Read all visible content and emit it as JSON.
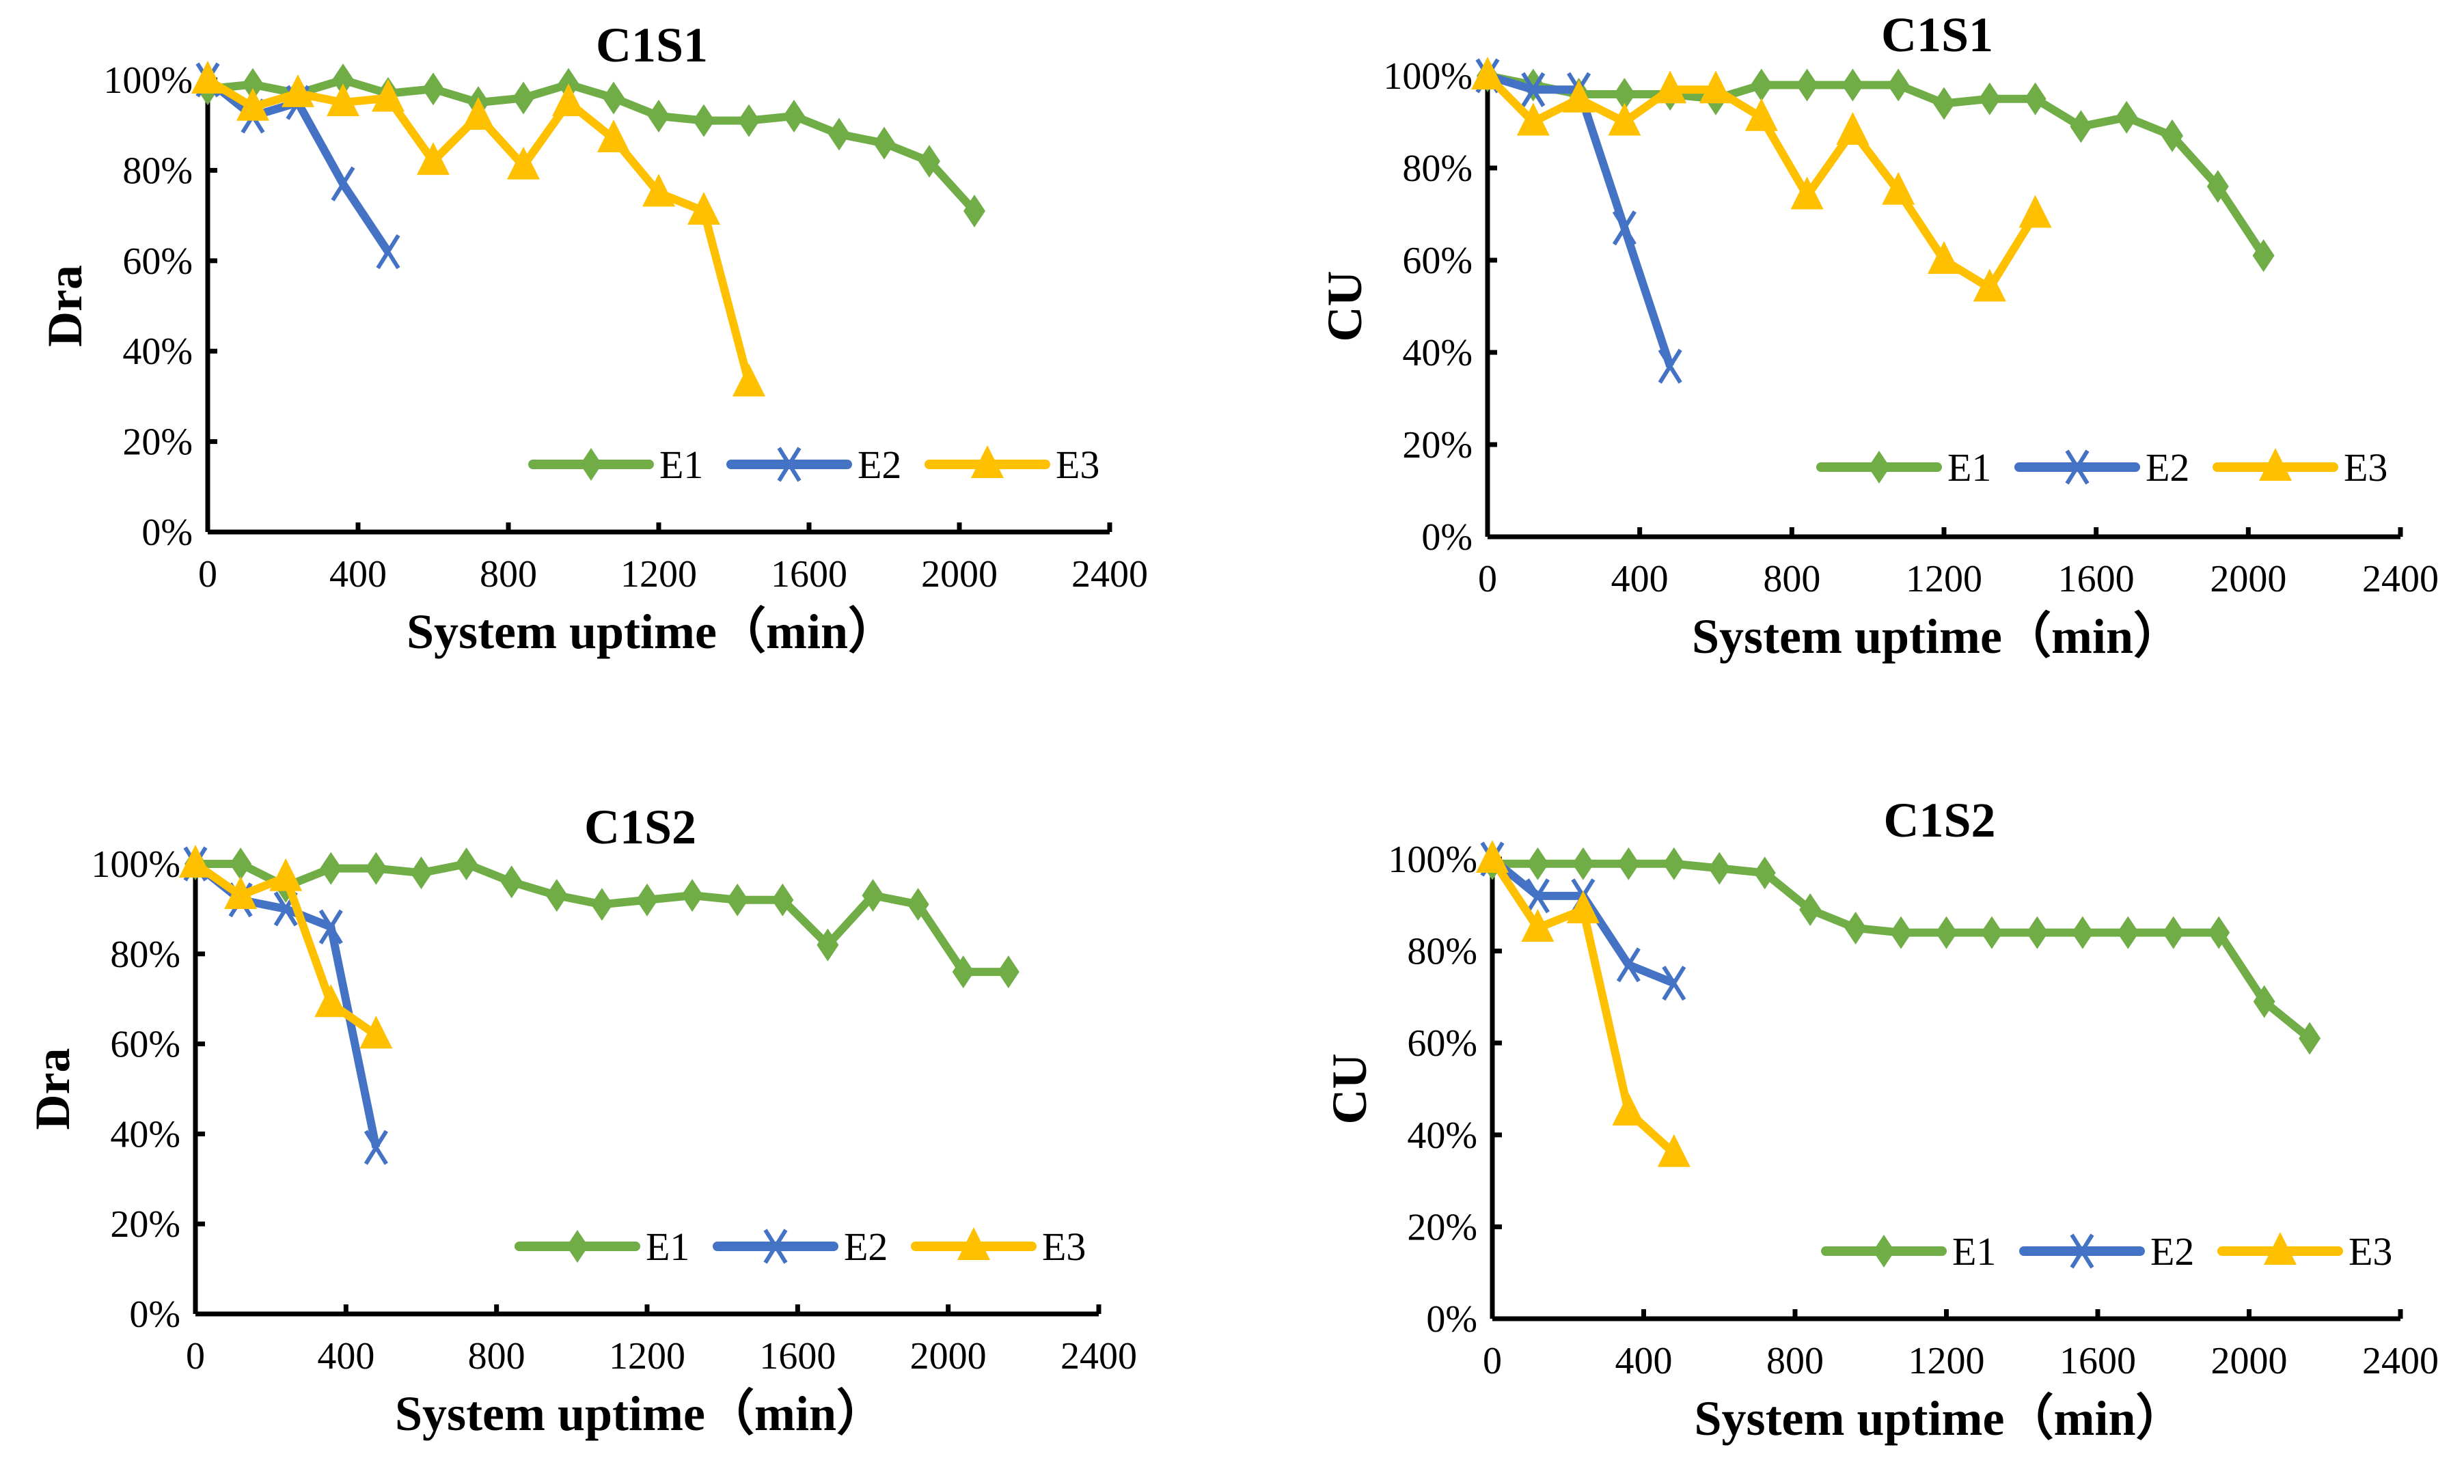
{
  "colors": {
    "E1": "#70AD47",
    "E2": "#4472C4",
    "E3": "#FFC000"
  },
  "chart_data": [
    {
      "type": "line",
      "title": "C1S1",
      "xlabel": "System uptime（min）",
      "ylabel": "Dra",
      "xlim": [
        0,
        2400
      ],
      "ylim": [
        0,
        100
      ],
      "xticks": [
        "0",
        "400",
        "800",
        "1200",
        "1600",
        "2000",
        "2400"
      ],
      "yticks": [
        "0%",
        "20%",
        "40%",
        "60%",
        "80%",
        "100%"
      ],
      "legend": "bottom-right",
      "series": [
        {
          "name": "E1",
          "marker": "diamond",
          "x": [
            0,
            120,
            240,
            360,
            480,
            600,
            720,
            840,
            960,
            1080,
            1200,
            1320,
            1440,
            1560,
            1680,
            1800,
            1920,
            2040
          ],
          "y": [
            98,
            99,
            97,
            100,
            97,
            98,
            95,
            96,
            99,
            96,
            92,
            91,
            91,
            92,
            88,
            86,
            82,
            71
          ]
        },
        {
          "name": "E2",
          "marker": "x",
          "x": [
            0,
            120,
            240,
            360,
            480
          ],
          "y": [
            100,
            92,
            95,
            77,
            62
          ]
        },
        {
          "name": "E3",
          "marker": "triangle",
          "x": [
            0,
            120,
            240,
            360,
            480,
            600,
            720,
            840,
            960,
            1080,
            1200,
            1320,
            1440
          ],
          "y": [
            100,
            94,
            97,
            95,
            96,
            82,
            92,
            81,
            95,
            87,
            75,
            71,
            33
          ]
        }
      ]
    },
    {
      "type": "line",
      "title": "C1S1",
      "xlabel": "System uptime（min）",
      "ylabel": "CU",
      "xlim": [
        0,
        2400
      ],
      "ylim": [
        0,
        100
      ],
      "xticks": [
        "0",
        "400",
        "800",
        "1200",
        "1600",
        "2000",
        "2400"
      ],
      "yticks": [
        "0%",
        "20%",
        "40%",
        "60%",
        "80%",
        "100%"
      ],
      "legend": "bottom-right",
      "series": [
        {
          "name": "E1",
          "marker": "diamond",
          "x": [
            0,
            120,
            240,
            360,
            480,
            600,
            720,
            840,
            960,
            1080,
            1200,
            1320,
            1440,
            1560,
            1680,
            1800,
            1920,
            2040
          ],
          "y": [
            100,
            98,
            96,
            96,
            96,
            95,
            98,
            98,
            98,
            98,
            94,
            95,
            95,
            89,
            91,
            87,
            76,
            61
          ]
        },
        {
          "name": "E2",
          "marker": "x",
          "x": [
            0,
            120,
            240,
            360,
            480
          ],
          "y": [
            100,
            97,
            97,
            67,
            37
          ]
        },
        {
          "name": "E3",
          "marker": "triangle",
          "x": [
            0,
            120,
            240,
            360,
            480,
            600,
            720,
            840,
            960,
            1080,
            1200,
            1320,
            1440
          ],
          "y": [
            100,
            90,
            95,
            90,
            97,
            97,
            91,
            74,
            88,
            75,
            60,
            54,
            70
          ]
        }
      ]
    },
    {
      "type": "line",
      "title": "C1S2",
      "xlabel": "System uptime（min）",
      "ylabel": "Dra",
      "xlim": [
        0,
        2400
      ],
      "ylim": [
        0,
        100
      ],
      "xticks": [
        "0",
        "400",
        "800",
        "1200",
        "1600",
        "2000",
        "2400"
      ],
      "yticks": [
        "0%",
        "20%",
        "40%",
        "60%",
        "80%",
        "100%"
      ],
      "legend": "bottom-right",
      "series": [
        {
          "name": "E1",
          "marker": "diamond",
          "x": [
            0,
            120,
            240,
            360,
            480,
            600,
            720,
            840,
            960,
            1080,
            1200,
            1320,
            1440,
            1560,
            1680,
            1800,
            1920,
            2040,
            2160
          ],
          "y": [
            100,
            100,
            95,
            99,
            99,
            98,
            100,
            96,
            93,
            91,
            92,
            93,
            92,
            92,
            82,
            93,
            91,
            76,
            76
          ]
        },
        {
          "name": "E2",
          "marker": "x",
          "x": [
            0,
            120,
            240,
            360,
            480
          ],
          "y": [
            100,
            92,
            90,
            86,
            37
          ]
        },
        {
          "name": "E3",
          "marker": "triangle",
          "x": [
            0,
            120,
            240,
            360,
            480
          ],
          "y": [
            100,
            93,
            97,
            69,
            62
          ]
        }
      ]
    },
    {
      "type": "line",
      "title": "C1S2",
      "xlabel": "System uptime（min）",
      "ylabel": "CU",
      "xlim": [
        0,
        2400
      ],
      "ylim": [
        0,
        100
      ],
      "xticks": [
        "0",
        "400",
        "800",
        "1200",
        "1600",
        "2000",
        "2400"
      ],
      "yticks": [
        "0%",
        "20%",
        "40%",
        "60%",
        "80%",
        "100%"
      ],
      "legend": "bottom-right",
      "series": [
        {
          "name": "E1",
          "marker": "diamond",
          "x": [
            0,
            120,
            240,
            360,
            480,
            600,
            720,
            840,
            960,
            1080,
            1200,
            1320,
            1440,
            1560,
            1680,
            1800,
            1920,
            2040,
            2160
          ],
          "y": [
            99,
            99,
            99,
            99,
            99,
            98,
            97,
            89,
            85,
            84,
            84,
            84,
            84,
            84,
            84,
            84,
            84,
            69,
            61
          ]
        },
        {
          "name": "E2",
          "marker": "x",
          "x": [
            0,
            120,
            240,
            360,
            480
          ],
          "y": [
            100,
            92,
            92,
            77,
            73
          ]
        },
        {
          "name": "E3",
          "marker": "triangle",
          "x": [
            0,
            120,
            240,
            360,
            480
          ],
          "y": [
            100,
            85,
            89,
            45,
            36
          ]
        }
      ]
    }
  ]
}
